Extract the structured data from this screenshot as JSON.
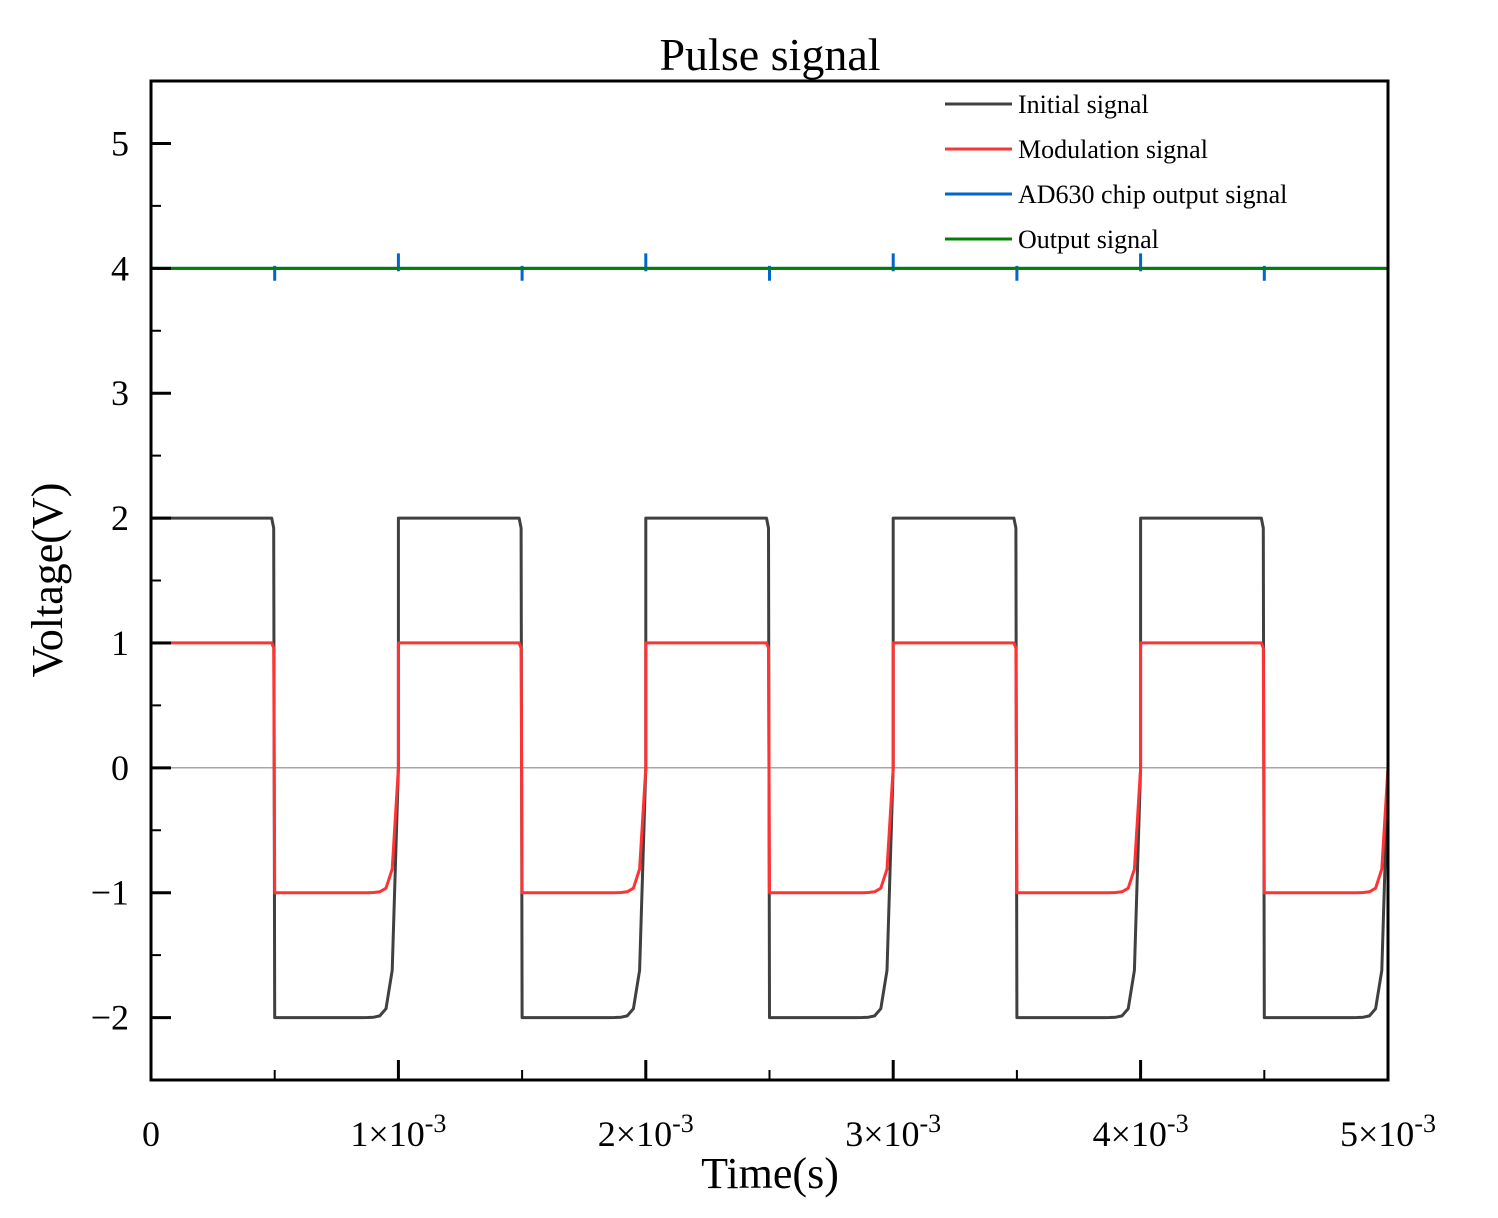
{
  "chart_data": {
    "type": "line",
    "title": "Pulse signal",
    "xlabel": "Time(s)",
    "ylabel": "Voltage(V)",
    "xlim": [
      0,
      0.005
    ],
    "ylim": [
      -2.5,
      5.5
    ],
    "x_ticks": [
      {
        "value": 0,
        "mantissa": "0",
        "exponent": ""
      },
      {
        "value": 0.001,
        "mantissa": "1×10",
        "exponent": "-3"
      },
      {
        "value": 0.002,
        "mantissa": "2×10",
        "exponent": "-3"
      },
      {
        "value": 0.003,
        "mantissa": "3×10",
        "exponent": "-3"
      },
      {
        "value": 0.004,
        "mantissa": "4×10",
        "exponent": "-3"
      },
      {
        "value": 0.005,
        "mantissa": "5×10",
        "exponent": "-3"
      }
    ],
    "y_ticks": [
      {
        "value": -2,
        "label": "−2"
      },
      {
        "value": -1,
        "label": "−1"
      },
      {
        "value": 0,
        "label": "0"
      },
      {
        "value": 1,
        "label": "1"
      },
      {
        "value": 2,
        "label": "2"
      },
      {
        "value": 3,
        "label": "3"
      },
      {
        "value": 4,
        "label": "4"
      },
      {
        "value": 5,
        "label": "5"
      }
    ],
    "zero_line": true,
    "legend_position": "top-right",
    "period": 0.001,
    "duty_cycle": 0.5,
    "series": [
      {
        "name": "Initial signal",
        "color": "#404040",
        "kind": "square",
        "high": 2,
        "low": -2
      },
      {
        "name": "Modulation signal",
        "color": "#ff3333",
        "kind": "square",
        "high": 1,
        "low": -1
      },
      {
        "name": "AD630 chip output signal",
        "color": "#0066cc",
        "kind": "constant_with_spikes",
        "level": 4,
        "spike_up": 0.12,
        "spike_down": -0.1
      },
      {
        "name": "Output signal",
        "color": "#008000",
        "kind": "constant",
        "level": 4
      }
    ]
  }
}
